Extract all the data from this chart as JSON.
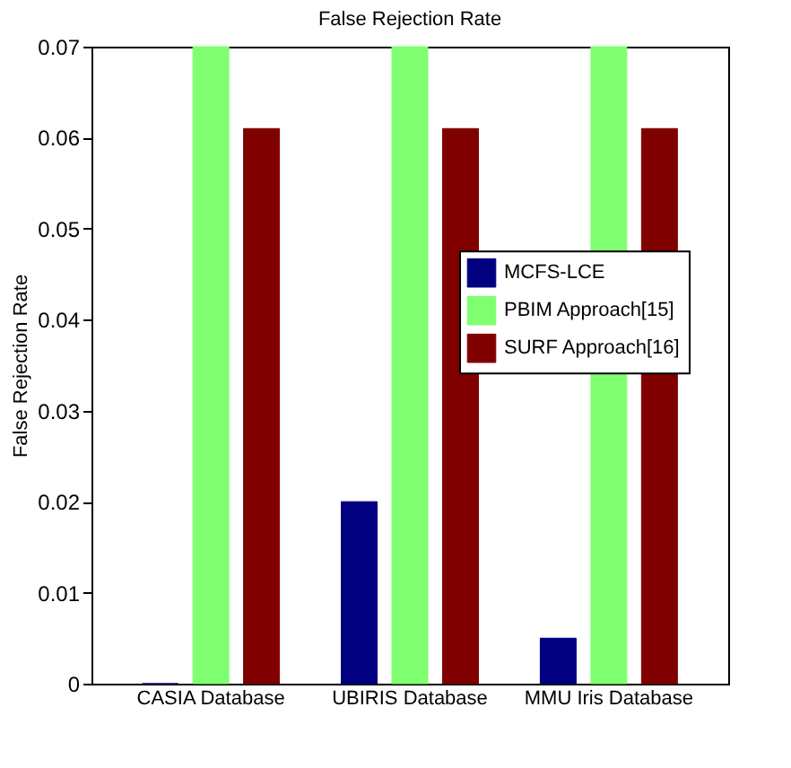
{
  "chart_data": {
    "type": "bar",
    "title": "False Rejection Rate",
    "ylabel": "False Rejection Rate",
    "categories": [
      "CASIA Database",
      "UBIRIS Database",
      "MMU Iris Database"
    ],
    "series": [
      {
        "name": "MCFS-LCE",
        "color": "#000080",
        "values": [
          0,
          0.02,
          0.005
        ]
      },
      {
        "name": "PBIM Approach[15]",
        "color": "#80ff70",
        "values": [
          0.07,
          0.07,
          0.07
        ]
      },
      {
        "name": "SURF Approach[16]",
        "color": "#800000",
        "values": [
          0.061,
          0.061,
          0.061
        ]
      }
    ],
    "ylim": [
      0,
      0.07
    ],
    "yticks": [
      {
        "value": 0,
        "label": "0"
      },
      0.01,
      0.02,
      0.03,
      0.04,
      0.05,
      0.06,
      0.07
    ],
    "legend": "right",
    "grid": false
  }
}
